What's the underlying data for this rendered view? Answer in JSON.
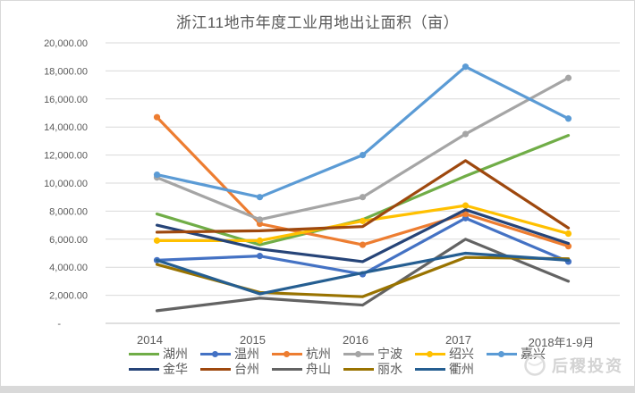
{
  "chart_data": {
    "type": "line",
    "title": "浙江11地市年度工业用地出让面积（亩）",
    "categories": [
      "2014",
      "2015",
      "2016",
      "2017",
      "2018年1-9月"
    ],
    "ylabel": "",
    "xlabel": "",
    "ylim": [
      0,
      20000
    ],
    "y_tick_step": 2000,
    "y_tick_labels": [
      "20,000.00",
      "18,000.00",
      "16,000.00",
      "14,000.00",
      "12,000.00",
      "10,000.00",
      "8,000.00",
      "6,000.00",
      "4,000.00",
      "2,000.00",
      "-"
    ],
    "grid": true,
    "legend_position": "bottom",
    "series": [
      {
        "name": "湖州",
        "id": "huzhou",
        "color": "#70AD47",
        "marker": false,
        "values": [
          7800,
          5600,
          7400,
          10500,
          13400
        ]
      },
      {
        "name": "温州",
        "id": "wenzhou",
        "color": "#4472C4",
        "marker": true,
        "values": [
          4500,
          4800,
          3500,
          7500,
          4400
        ]
      },
      {
        "name": "杭州",
        "id": "hangzhou",
        "color": "#ED7D31",
        "marker": true,
        "values": [
          14700,
          7100,
          5600,
          7800,
          5500
        ]
      },
      {
        "name": "宁波",
        "id": "ningbo",
        "color": "#A5A5A5",
        "marker": true,
        "values": [
          10400,
          7400,
          9000,
          13500,
          17500
        ]
      },
      {
        "name": "绍兴",
        "id": "shaoxing",
        "color": "#FFC000",
        "marker": true,
        "values": [
          5900,
          5900,
          7300,
          8400,
          6400
        ]
      },
      {
        "name": "嘉兴",
        "id": "jiaxing",
        "color": "#5B9BD5",
        "marker": true,
        "values": [
          10600,
          9000,
          12000,
          18300,
          14600
        ]
      },
      {
        "name": "金华",
        "id": "jinhua",
        "color": "#264478",
        "marker": false,
        "values": [
          7000,
          5300,
          4400,
          8100,
          5700
        ]
      },
      {
        "name": "台州",
        "id": "taizhou",
        "color": "#9E480E",
        "marker": false,
        "values": [
          6500,
          6600,
          6900,
          11600,
          6800
        ]
      },
      {
        "name": "舟山",
        "id": "zhoushan",
        "color": "#636363",
        "marker": false,
        "values": [
          900,
          1800,
          1300,
          6000,
          3000
        ]
      },
      {
        "name": "丽水",
        "id": "lishui",
        "color": "#997300",
        "marker": false,
        "values": [
          4200,
          2200,
          1900,
          4700,
          4600
        ]
      },
      {
        "name": "衢州",
        "id": "quzhou",
        "color": "#255E91",
        "marker": false,
        "values": [
          4500,
          2100,
          3600,
          5000,
          4500
        ]
      }
    ],
    "colors": {
      "gridline": "#d9d9d9",
      "axis_line": "#bfbfbf",
      "tick_text": "#595959",
      "title_text": "#595959"
    }
  },
  "watermark": {
    "text": "后稷投资"
  }
}
